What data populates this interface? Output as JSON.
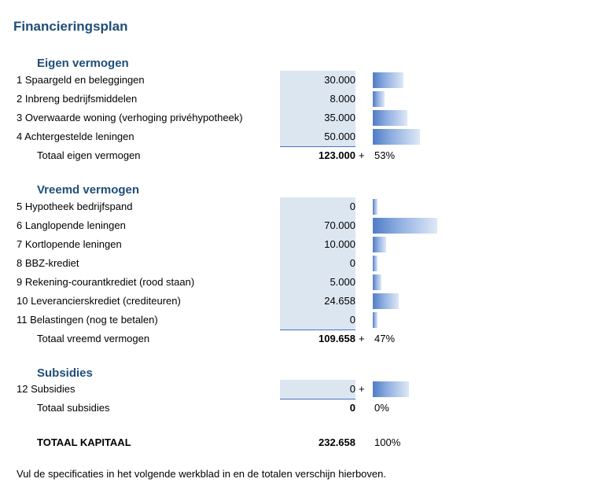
{
  "title": "Financieringsplan",
  "eigen": {
    "heading": "Eigen vermogen",
    "rows": [
      {
        "label": "1 Spaargeld en beleggingen",
        "value": "30.000",
        "amount": 30000
      },
      {
        "label": "2 Inbreng bedrijfsmiddelen",
        "value": "8.000",
        "amount": 8000
      },
      {
        "label": "3 Overwaarde woning (verhoging privéhypotheek)",
        "value": "35.000",
        "amount": 35000
      },
      {
        "label": "4 Achtergestelde leningen",
        "value": "50.000",
        "amount": 50000
      }
    ],
    "total_label": "Totaal eigen vermogen",
    "total_value": "123.000",
    "plus": "+",
    "percent": "53%"
  },
  "vreemd": {
    "heading": "Vreemd vermogen",
    "rows": [
      {
        "label": "5 Hypotheek bedrijfspand",
        "value": "0",
        "amount": 0
      },
      {
        "label": "6 Langlopende leningen",
        "value": "70.000",
        "amount": 70000
      },
      {
        "label": "7 Kortlopende leningen",
        "value": "10.000",
        "amount": 10000
      },
      {
        "label": "8 BBZ-krediet",
        "value": "0",
        "amount": 0
      },
      {
        "label": "9 Rekening-courantkrediet (rood staan)",
        "value": "5.000",
        "amount": 5000
      },
      {
        "label": "10 Leverancierskrediet (crediteuren)",
        "value": "24.658",
        "amount": 24658
      },
      {
        "label": "11 Belastingen (nog te betalen)",
        "value": "0",
        "amount": 0
      }
    ],
    "total_label": "Totaal vreemd vermogen",
    "total_value": "109.658",
    "plus": "+",
    "percent": "47%"
  },
  "subsidies": {
    "heading": "Subsidies",
    "rows": [
      {
        "label": "12 Subsidies",
        "value": "0",
        "amount": 0,
        "plus": "+"
      }
    ],
    "total_label": "Totaal subsidies",
    "total_value": "0",
    "percent": "0%"
  },
  "grand_total": {
    "label": "TOTAAL KAPITAAL",
    "value": "232.658",
    "percent": "100%"
  },
  "footer": "Vul de specificaties in het volgende werkblad in en de totalen verschijn hierboven.",
  "colors": {
    "accent": "#1f4e79",
    "input_fill": "#dce6f1",
    "bar": "#4f7cc6"
  }
}
